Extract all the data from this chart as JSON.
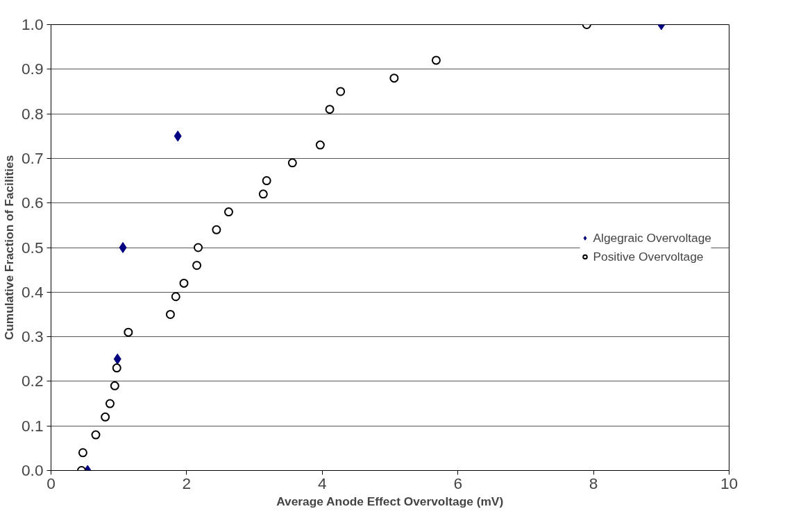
{
  "chart_data": {
    "type": "scatter",
    "xlabel": "Average Anode Effect Overvoltage (mV)",
    "ylabel": "Cumulative Fraction of Facilities",
    "xlim": [
      0,
      10
    ],
    "xticks": [
      0,
      2,
      4,
      6,
      8,
      10
    ],
    "ylim": [
      0,
      1
    ],
    "yticks": [
      {
        "value": 0,
        "label": "0.0"
      },
      0.1,
      0.2,
      0.3,
      0.4,
      0.5,
      0.6,
      0.7,
      0.8,
      0.9,
      {
        "value": 1,
        "label": "1.0"
      }
    ],
    "grid": "y",
    "legend": "right",
    "series": [
      {
        "name": "Algegraic Overvoltage",
        "color": "#000080",
        "marker": "diamond",
        "x": [
          0.54,
          0.98,
          1.06,
          1.87,
          9.0
        ],
        "values": [
          0,
          0.25,
          0.5,
          0.75,
          1.0
        ]
      },
      {
        "name": "Positive Overvoltage",
        "color": "#000000",
        "marker": "circle",
        "x": [
          0.45,
          0.47,
          0.66,
          0.8,
          0.87,
          0.94,
          0.97,
          1.14,
          1.76,
          1.84,
          1.96,
          2.15,
          2.17,
          2.44,
          2.62,
          3.13,
          3.18,
          3.56,
          3.97,
          4.11,
          4.27,
          5.06,
          5.68,
          7.9
        ],
        "values": [
          0,
          0.04,
          0.08,
          0.12,
          0.15,
          0.19,
          0.23,
          0.31,
          0.35,
          0.39,
          0.42,
          0.46,
          0.5,
          0.54,
          0.58,
          0.62,
          0.65,
          0.69,
          0.73,
          0.81,
          0.85,
          0.88,
          0.92,
          1.0
        ]
      }
    ]
  }
}
